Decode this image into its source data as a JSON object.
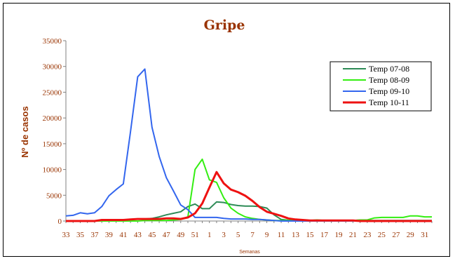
{
  "chart_data": {
    "type": "line",
    "title": "Gripe",
    "ylabel": "Nº de casos",
    "xlabel": "Semanas",
    "ylim": [
      0,
      35000
    ],
    "yticks": [
      "0",
      "5000",
      "10000",
      "15000",
      "20000",
      "25000",
      "30000",
      "35000"
    ],
    "grid": false,
    "legend_position": "right",
    "weeks": [
      33,
      34,
      35,
      36,
      37,
      38,
      39,
      40,
      41,
      42,
      43,
      44,
      45,
      46,
      47,
      48,
      49,
      50,
      51,
      52,
      1,
      2,
      3,
      4,
      5,
      6,
      7,
      8,
      9,
      10,
      11,
      12,
      13,
      14,
      15,
      16,
      17,
      18,
      19,
      20,
      21,
      22,
      23,
      24,
      25,
      26,
      27,
      28,
      29,
      30,
      31,
      32
    ],
    "x_tick_labels": [
      "33",
      "35",
      "37",
      "39",
      "41",
      "43",
      "45",
      "47",
      "49",
      "51",
      "1",
      "3",
      "5",
      "7",
      "9",
      "11",
      "13",
      "15",
      "17",
      "19",
      "21",
      "23",
      "25",
      "27",
      "29",
      "31"
    ],
    "series": [
      {
        "name": "Temp 07-08",
        "color": "#2e8b57",
        "values": [
          0,
          0,
          0,
          0,
          0,
          100,
          150,
          200,
          250,
          300,
          350,
          400,
          500,
          800,
          1200,
          1500,
          1800,
          2800,
          3300,
          2400,
          2400,
          3700,
          3600,
          3200,
          3000,
          2900,
          2900,
          2800,
          2500,
          1200,
          300,
          150,
          100,
          100,
          100,
          100,
          100,
          100,
          100,
          100,
          100,
          100,
          100,
          100,
          100,
          100,
          100,
          100,
          100,
          100,
          100,
          100
        ]
      },
      {
        "name": "Temp 08-09",
        "color": "#33ee11",
        "values": [
          0,
          0,
          0,
          0,
          0,
          0,
          0,
          0,
          0,
          0,
          0,
          100,
          100,
          100,
          100,
          200,
          300,
          800,
          10000,
          12000,
          8000,
          7500,
          4500,
          2500,
          1500,
          800,
          500,
          300,
          200,
          100,
          100,
          100,
          100,
          100,
          100,
          200,
          100,
          100,
          100,
          100,
          100,
          200,
          200,
          600,
          700,
          700,
          700,
          700,
          1000,
          1000,
          800,
          800
        ]
      },
      {
        "name": "Temp 09-10",
        "color": "#3366ee",
        "values": [
          1000,
          1100,
          1600,
          1400,
          1600,
          2800,
          4900,
          6100,
          7200,
          17300,
          28000,
          29500,
          18200,
          12500,
          8400,
          5800,
          3100,
          2200,
          700,
          700,
          700,
          700,
          500,
          400,
          400,
          400,
          300,
          300,
          200,
          100,
          0,
          0,
          0,
          0,
          0,
          0,
          0,
          0,
          0,
          0,
          0,
          0,
          0,
          0,
          0,
          0,
          0,
          0,
          0,
          0,
          0,
          0
        ]
      },
      {
        "name": "Temp 10-11",
        "color": "#ee1111",
        "values": [
          0,
          0,
          0,
          0,
          0,
          200,
          200,
          200,
          200,
          300,
          400,
          400,
          400,
          400,
          500,
          500,
          400,
          700,
          1500,
          3400,
          6500,
          9500,
          7300,
          6100,
          5600,
          4900,
          3900,
          2700,
          1800,
          1400,
          1000,
          500,
          300,
          200,
          100,
          100,
          100,
          100,
          100,
          100,
          100,
          0,
          0,
          0,
          0,
          0,
          0,
          0,
          0,
          0,
          0,
          0
        ]
      }
    ]
  },
  "colors": {
    "text": "#993300",
    "axis": "#808080"
  }
}
